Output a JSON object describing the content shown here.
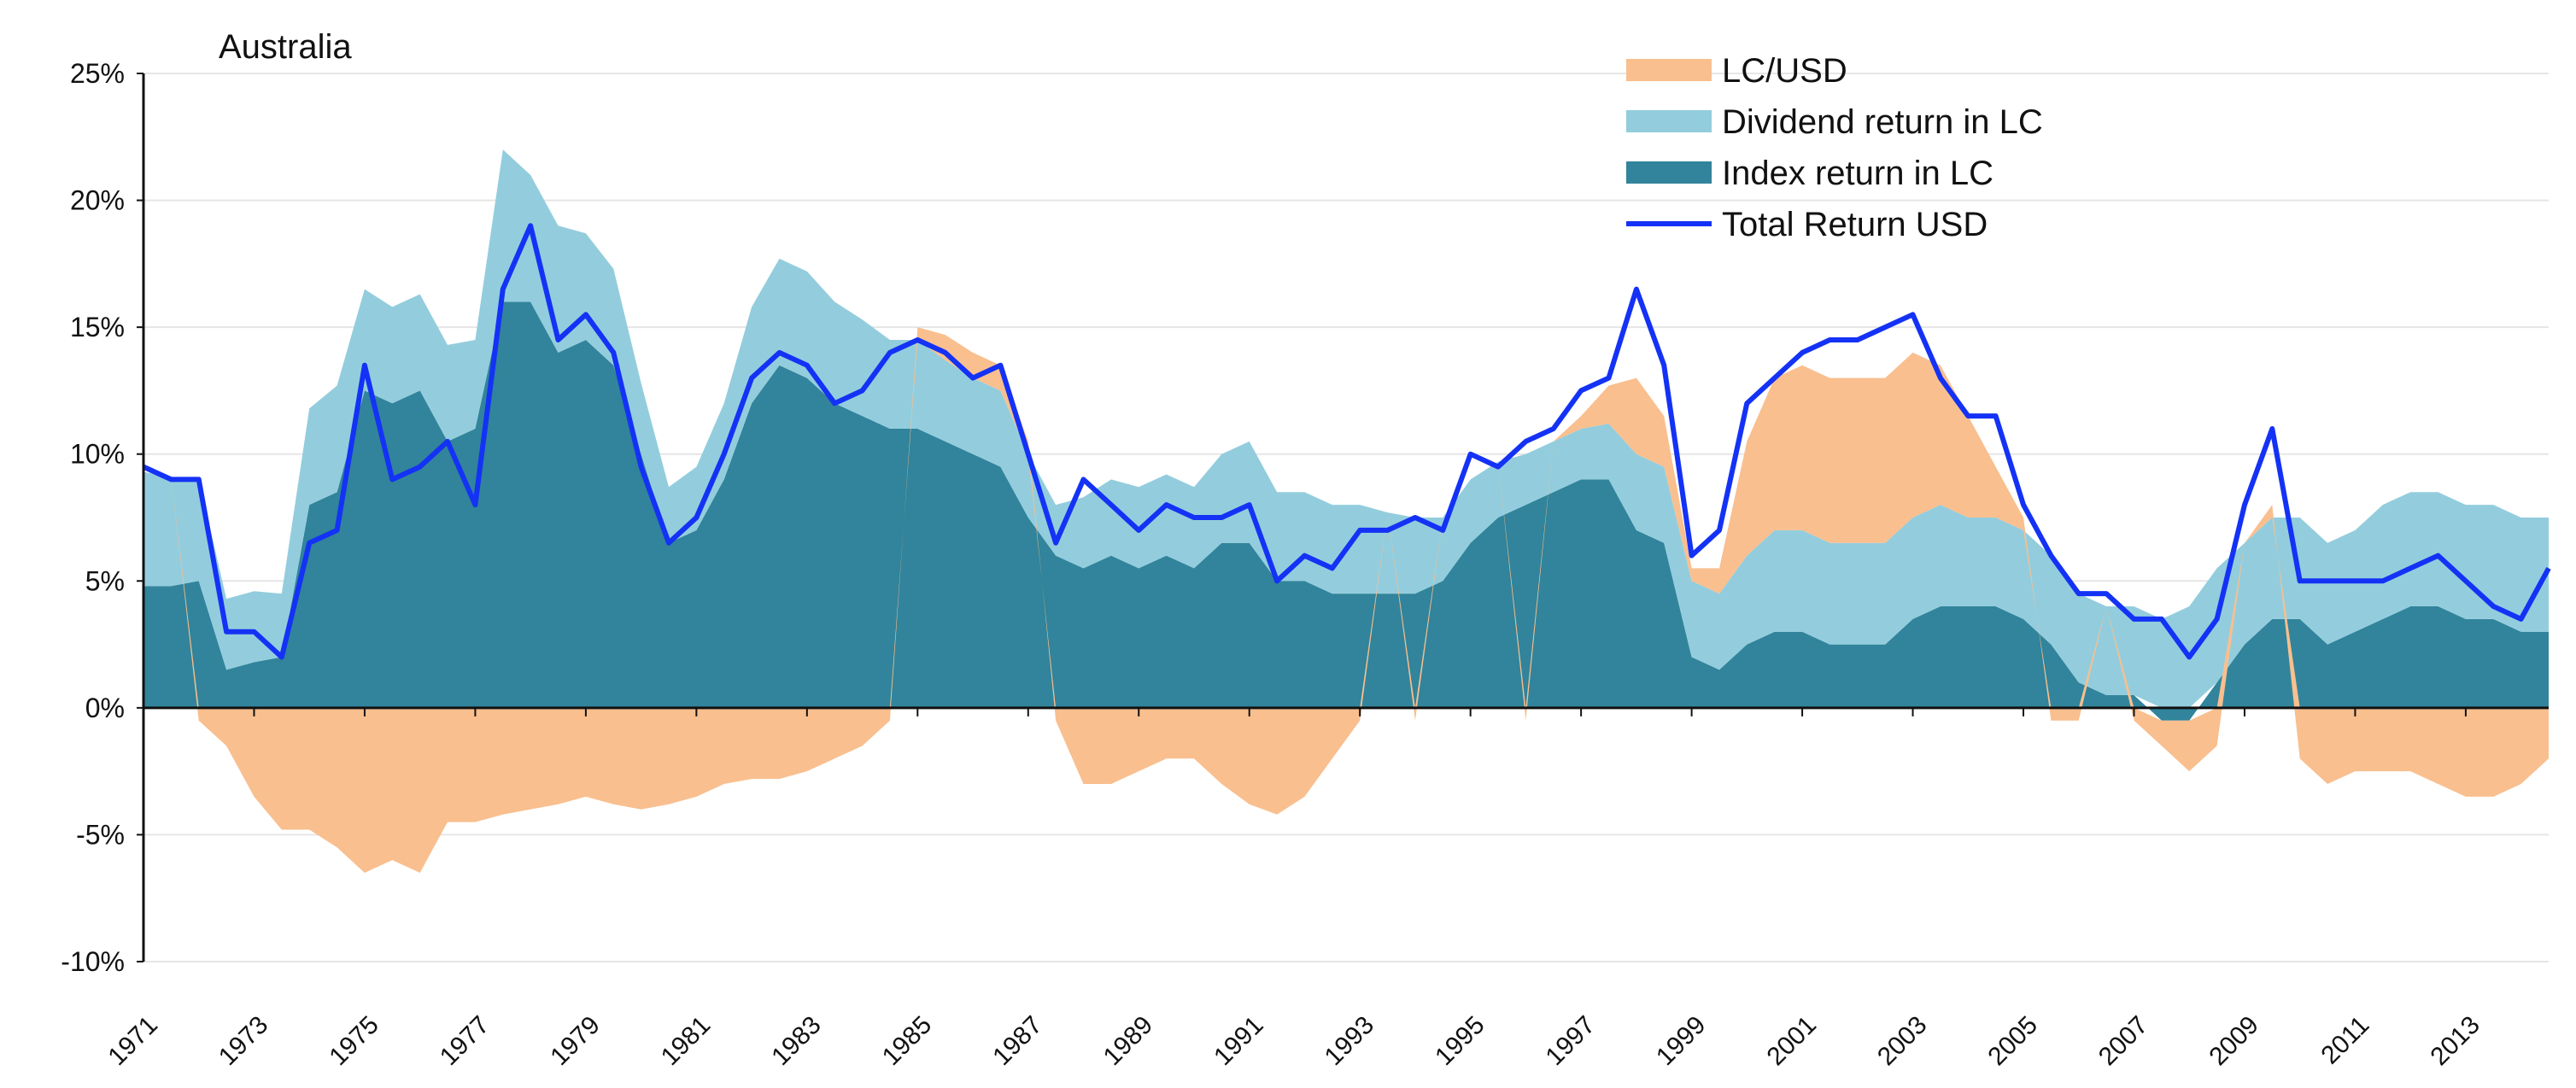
{
  "chart_data": {
    "type": "area",
    "title": "Australia",
    "xlabel": "",
    "ylabel": "",
    "x_range": [
      1971,
      2014.5
    ],
    "ylim": [
      -10,
      25
    ],
    "y_ticks": [
      25,
      20,
      15,
      10,
      5,
      0,
      -5,
      -10
    ],
    "y_tick_labels": [
      "25%",
      "20%",
      "15%",
      "10%",
      "5%",
      "0%",
      "-5%",
      "-10%"
    ],
    "x_tick_labels": [
      "1971",
      "1973",
      "1975",
      "1977",
      "1979",
      "1981",
      "1983",
      "1985",
      "1987",
      "1989",
      "1991",
      "1993",
      "1995",
      "1997",
      "1999",
      "2001",
      "2003",
      "2005",
      "2007",
      "2009",
      "2011",
      "2013"
    ],
    "grid": true,
    "legend_position": "top-right",
    "legend": [
      {
        "label": "LC/USD",
        "color": "#F9BF8F",
        "kind": "area"
      },
      {
        "label": "Dividend return in LC",
        "color": "#93CDDD",
        "kind": "area"
      },
      {
        "label": "Index return in LC",
        "color": "#31849B",
        "kind": "area"
      },
      {
        "label": "Total Return USD",
        "color": "#1432F5",
        "kind": "line"
      }
    ],
    "x": [
      1971,
      1971.5,
      1972,
      1972.5,
      1973,
      1973.5,
      1974,
      1974.5,
      1975,
      1975.5,
      1976,
      1976.5,
      1977,
      1977.5,
      1978,
      1978.5,
      1979,
      1979.5,
      1980,
      1980.5,
      1981,
      1981.5,
      1982,
      1982.5,
      1983,
      1983.5,
      1984,
      1984.5,
      1985,
      1985.5,
      1986,
      1986.5,
      1987,
      1987.5,
      1988,
      1988.5,
      1989,
      1989.5,
      1990,
      1990.5,
      1991,
      1991.5,
      1992,
      1992.5,
      1993,
      1993.5,
      1994,
      1994.5,
      1995,
      1995.5,
      1996,
      1996.5,
      1997,
      1997.5,
      1998,
      1998.5,
      1999,
      1999.5,
      2000,
      2000.5,
      2001,
      2001.5,
      2002,
      2002.5,
      2003,
      2003.5,
      2004,
      2004.5,
      2005,
      2005.5,
      2006,
      2006.5,
      2007,
      2007.5,
      2008,
      2008.5,
      2009,
      2009.5,
      2010,
      2010.5,
      2011,
      2011.5,
      2012,
      2012.5,
      2013,
      2013.5,
      2014,
      2014.5
    ],
    "series": [
      {
        "name": "Index return in LC",
        "values": [
          4.8,
          4.8,
          5.0,
          1.5,
          1.8,
          2.0,
          8.0,
          8.5,
          12.5,
          12.0,
          12.5,
          10.5,
          11.0,
          16.0,
          16.0,
          14.0,
          14.5,
          13.5,
          10.0,
          6.5,
          7.0,
          9.0,
          12.0,
          13.5,
          13.0,
          12.0,
          11.5,
          11.0,
          11.0,
          10.5,
          10.0,
          9.5,
          7.5,
          6.0,
          5.5,
          6.0,
          5.5,
          6.0,
          5.5,
          6.5,
          6.5,
          5.0,
          5.0,
          4.5,
          4.5,
          4.5,
          4.5,
          5.0,
          6.5,
          7.5,
          8.0,
          8.5,
          9.0,
          9.0,
          7.0,
          6.5,
          2.0,
          1.5,
          2.5,
          3.0,
          3.0,
          2.5,
          2.5,
          2.5,
          3.5,
          4.0,
          4.0,
          4.0,
          3.5,
          2.5,
          1.0,
          0.5,
          0.5,
          -0.5,
          -0.5,
          1.0,
          2.5,
          3.5,
          3.5,
          2.5,
          3.0,
          3.5,
          4.0,
          4.0,
          3.5,
          3.5,
          3.0,
          3.0
        ]
      },
      {
        "name": "Dividend return in LC",
        "values": [
          4.5,
          4.3,
          4.0,
          2.8,
          2.8,
          2.5,
          3.8,
          4.2,
          4.0,
          3.8,
          3.8,
          3.8,
          3.5,
          6.0,
          5.0,
          5.0,
          4.2,
          3.8,
          2.8,
          2.2,
          2.5,
          3.0,
          3.8,
          4.2,
          4.2,
          4.0,
          3.8,
          3.5,
          3.5,
          3.2,
          3.0,
          3.0,
          2.5,
          2.0,
          2.8,
          3.0,
          3.2,
          3.2,
          3.2,
          3.5,
          4.0,
          3.5,
          3.5,
          3.5,
          3.5,
          3.2,
          3.0,
          2.5,
          2.5,
          2.2,
          2.0,
          2.0,
          2.0,
          2.2,
          3.0,
          3.0,
          3.0,
          3.0,
          3.5,
          4.0,
          4.0,
          4.0,
          4.0,
          4.0,
          4.0,
          4.0,
          3.5,
          3.5,
          3.5,
          3.5,
          3.5,
          3.5,
          3.5,
          3.5,
          4.0,
          4.5,
          4.0,
          4.0,
          4.0,
          4.0,
          4.0,
          4.5,
          4.5,
          4.5,
          4.5,
          4.5,
          4.5,
          4.5
        ]
      },
      {
        "name": "LC/USD",
        "values": [
          0.0,
          0.0,
          -0.5,
          -1.5,
          -3.5,
          -4.8,
          -4.8,
          -5.5,
          -6.5,
          -6.0,
          -6.5,
          -4.5,
          -4.5,
          -4.2,
          -4.0,
          -3.8,
          -3.5,
          -3.8,
          -4.0,
          -3.8,
          -3.5,
          -3.0,
          -2.8,
          -2.8,
          -2.5,
          -2.0,
          -1.5,
          -0.5,
          0.5,
          1.0,
          1.0,
          1.0,
          0.5,
          -0.5,
          -3.0,
          -3.0,
          -2.5,
          -2.0,
          -2.0,
          -3.0,
          -3.8,
          -4.2,
          -3.5,
          -2.0,
          -0.5,
          0.0,
          -0.5,
          0.0,
          0.0,
          0.0,
          -0.5,
          0.0,
          0.5,
          1.5,
          3.0,
          2.0,
          0.5,
          1.0,
          4.5,
          6.0,
          6.5,
          6.5,
          6.5,
          6.5,
          6.5,
          5.5,
          4.0,
          2.0,
          0.5,
          -0.5,
          -0.5,
          0.0,
          -0.5,
          -1.0,
          -2.0,
          -1.5,
          0.0,
          0.5,
          -2.0,
          -3.0,
          -2.5,
          -2.5,
          -2.5,
          -3.0,
          -3.5,
          -3.5,
          -3.0,
          -2.0
        ]
      },
      {
        "name": "Total Return USD",
        "values": [
          9.5,
          9.0,
          9.0,
          3.0,
          3.0,
          2.0,
          6.5,
          7.0,
          13.5,
          9.0,
          9.5,
          10.5,
          8.0,
          16.5,
          19.0,
          14.5,
          15.5,
          14.0,
          9.5,
          6.5,
          7.5,
          10.0,
          13.0,
          14.0,
          13.5,
          12.0,
          12.5,
          14.0,
          14.5,
          14.0,
          13.0,
          13.5,
          10.0,
          6.5,
          9.0,
          8.0,
          7.0,
          8.0,
          7.5,
          7.5,
          8.0,
          5.0,
          6.0,
          5.5,
          7.0,
          7.0,
          7.5,
          7.0,
          10.0,
          9.5,
          10.5,
          11.0,
          12.5,
          13.0,
          16.5,
          13.5,
          6.0,
          7.0,
          12.0,
          13.0,
          14.0,
          14.5,
          14.5,
          15.0,
          15.5,
          13.0,
          11.5,
          11.5,
          8.0,
          6.0,
          4.5,
          4.5,
          3.5,
          3.5,
          2.0,
          3.5,
          8.0,
          11.0,
          5.0,
          5.0,
          5.0,
          5.0,
          5.5,
          6.0,
          5.0,
          4.0,
          3.5,
          5.5
        ]
      }
    ]
  }
}
